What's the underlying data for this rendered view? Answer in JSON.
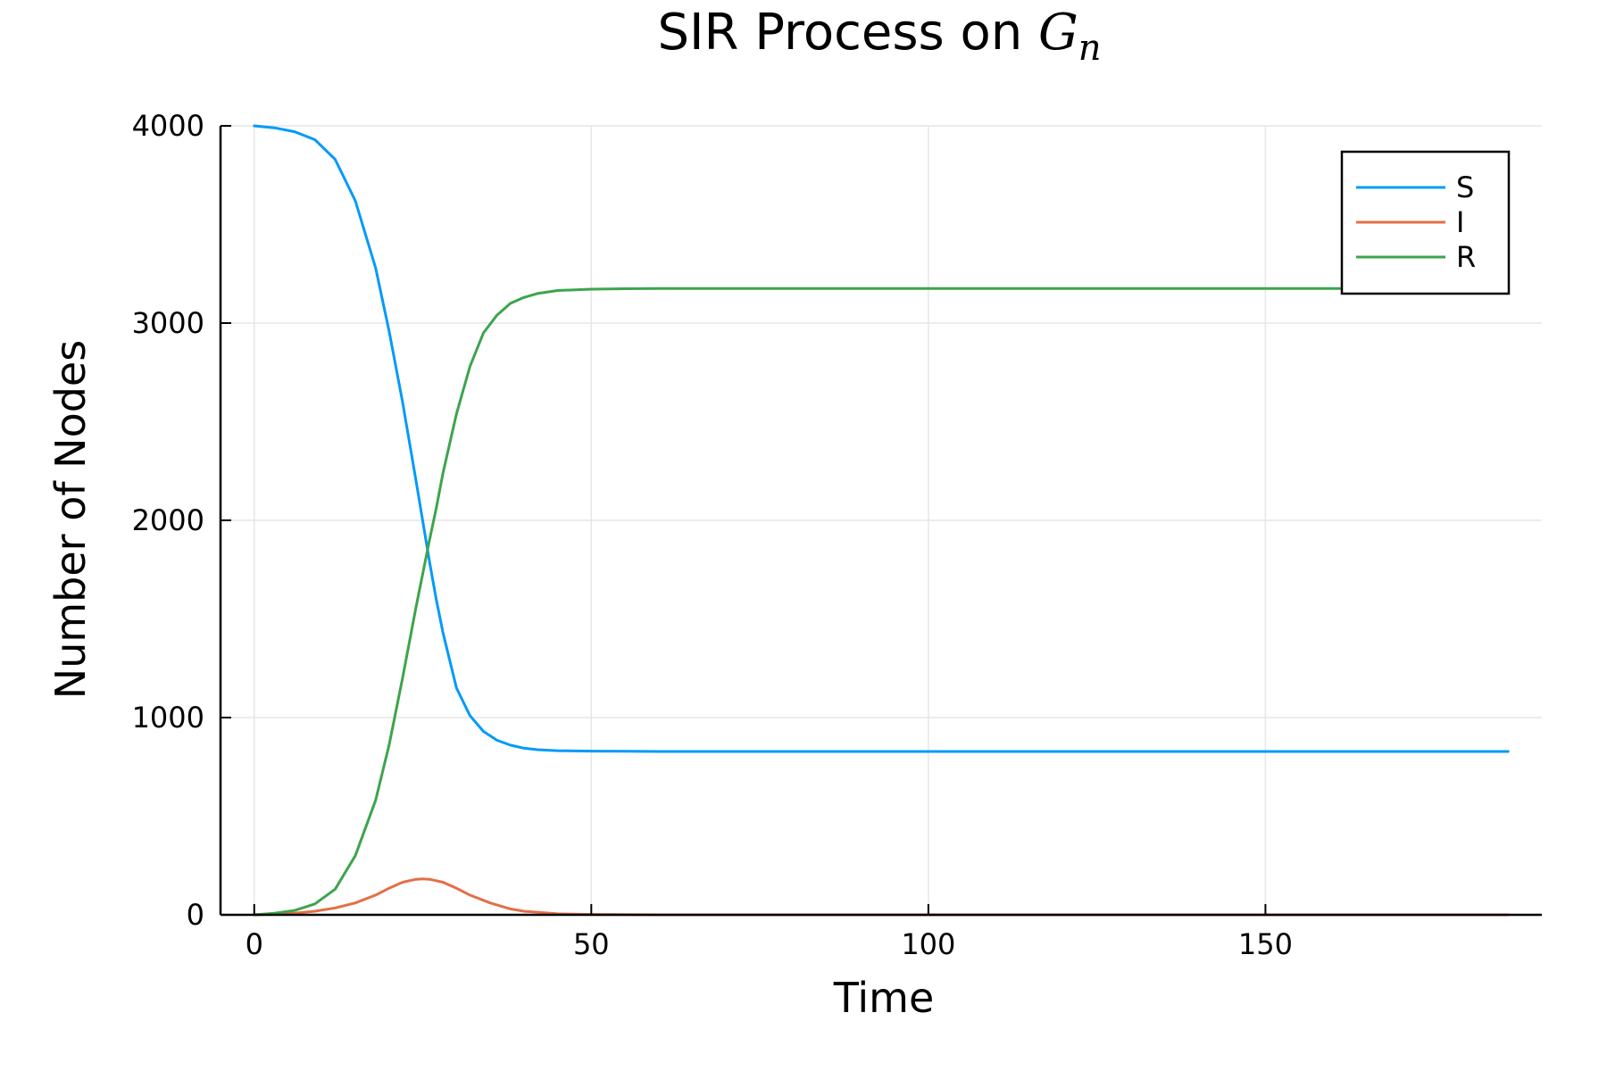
{
  "chart_data": {
    "type": "line",
    "title_text": "SIR Process on ",
    "title_math_main": "G",
    "title_math_sub": "n",
    "xlabel": "Time",
    "ylabel": "Number of Nodes",
    "xlim": [
      -5,
      191
    ],
    "ylim": [
      0,
      4000
    ],
    "xticks": [
      0,
      50,
      100,
      150
    ],
    "yticks": [
      0,
      1000,
      2000,
      3000,
      4000
    ],
    "grid": true,
    "legend_position": "top-right",
    "series": [
      {
        "name": "S",
        "color": "#009AFA",
        "x": [
          0,
          3,
          6,
          9,
          12,
          15,
          18,
          20,
          22,
          24,
          26,
          27,
          28,
          30,
          32,
          34,
          36,
          38,
          40,
          42,
          45,
          50,
          55,
          60,
          80,
          100,
          120,
          150,
          186
        ],
        "y": [
          4000,
          3990,
          3970,
          3930,
          3830,
          3620,
          3280,
          2960,
          2600,
          2200,
          1790,
          1600,
          1430,
          1150,
          1010,
          930,
          885,
          860,
          845,
          837,
          832,
          830,
          829,
          828,
          828,
          828,
          828,
          828,
          828
        ]
      },
      {
        "name": "I",
        "color": "#E36F47",
        "x": [
          0,
          3,
          6,
          9,
          12,
          15,
          18,
          20,
          22,
          24,
          25,
          26,
          28,
          30,
          32,
          35,
          38,
          40,
          45,
          50,
          60,
          80,
          100,
          150,
          186
        ],
        "y": [
          0,
          3,
          8,
          18,
          35,
          60,
          100,
          135,
          165,
          180,
          182,
          180,
          165,
          135,
          100,
          60,
          30,
          18,
          5,
          2,
          0,
          0,
          0,
          0,
          0
        ]
      },
      {
        "name": "R",
        "color": "#3DA44D",
        "x": [
          0,
          3,
          6,
          9,
          12,
          15,
          18,
          20,
          22,
          24,
          26,
          27,
          28,
          30,
          32,
          34,
          36,
          38,
          40,
          42,
          45,
          50,
          55,
          60,
          80,
          100,
          120,
          150,
          186
        ],
        "y": [
          0,
          8,
          22,
          55,
          130,
          300,
          580,
          860,
          1200,
          1560,
          1900,
          2060,
          2240,
          2540,
          2780,
          2950,
          3040,
          3100,
          3130,
          3150,
          3165,
          3172,
          3174,
          3175,
          3175,
          3175,
          3175,
          3175,
          3175
        ]
      }
    ]
  }
}
